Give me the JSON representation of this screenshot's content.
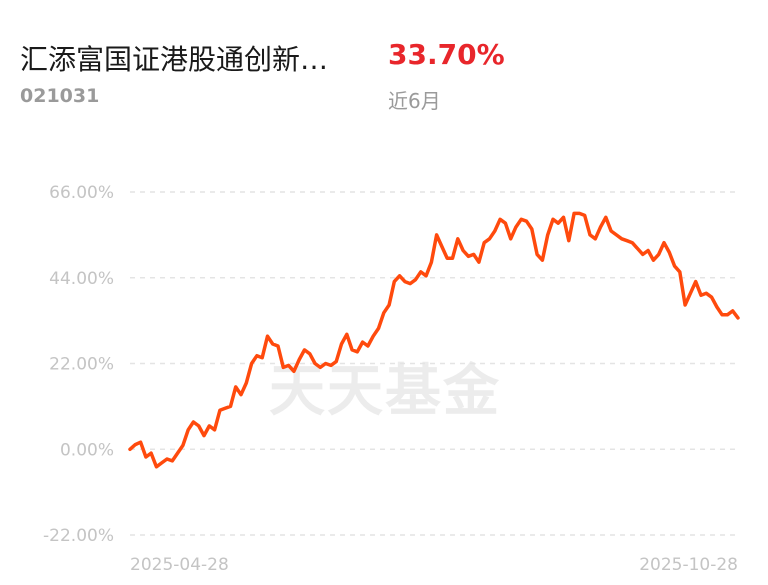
{
  "header": {
    "fund_name": "汇添富国证港股通创新…",
    "fund_code": "021031",
    "return_value": "33.70%",
    "period": "近6月"
  },
  "watermark": "天天基金",
  "colors": {
    "line": "#ff4a0d",
    "return": "#e8262b",
    "grid": "#e4e4e4"
  },
  "chart_data": {
    "type": "line",
    "ylim": [
      -22,
      66
    ],
    "yticks": [
      66,
      44,
      22,
      0,
      -22
    ],
    "ytick_labels": [
      "66.00%",
      "44.00%",
      "22.00%",
      "0.00%",
      "-22.00%"
    ],
    "xtick_labels": [
      "2025-04-28",
      "2025-10-28"
    ],
    "grid": true,
    "series": [
      {
        "values": [
          0.0,
          1.2,
          1.8,
          -2.0,
          -1.0,
          -4.5,
          -3.5,
          -2.5,
          -3.0,
          -1.0,
          1.0,
          5.0,
          7.0,
          6.0,
          3.5,
          6.0,
          5.0,
          10.0,
          10.5,
          11.0,
          16.0,
          14.0,
          17.0,
          22.0,
          24.0,
          23.5,
          29.0,
          27.0,
          26.5,
          21.0,
          21.5,
          20.0,
          23.0,
          25.5,
          24.5,
          22.0,
          21.0,
          22.0,
          21.5,
          22.5,
          27.0,
          29.5,
          25.5,
          25.0,
          27.5,
          26.5,
          29.0,
          31.0,
          35.0,
          37.0,
          43.0,
          44.5,
          43.0,
          42.5,
          43.5,
          45.5,
          44.5,
          48.0,
          55.0,
          52.0,
          49.0,
          49.0,
          54.0,
          51.0,
          49.5,
          50.0,
          48.0,
          53.0,
          54.0,
          56.0,
          59.0,
          58.0,
          54.0,
          57.0,
          59.0,
          58.5,
          56.5,
          50.0,
          48.5,
          55.0,
          59.0,
          58.0,
          59.5,
          53.5,
          60.5,
          60.5,
          60.0,
          55.0,
          54.0,
          57.0,
          59.5,
          56.0,
          55.0,
          54.0,
          53.5,
          53.0,
          51.5,
          50.0,
          51.0,
          48.5,
          50.0,
          53.0,
          50.5,
          47.0,
          45.5,
          37.0,
          40.0,
          43.0,
          39.5,
          40.0,
          39.0,
          36.5,
          34.5,
          34.5,
          35.5,
          33.7
        ]
      }
    ]
  }
}
